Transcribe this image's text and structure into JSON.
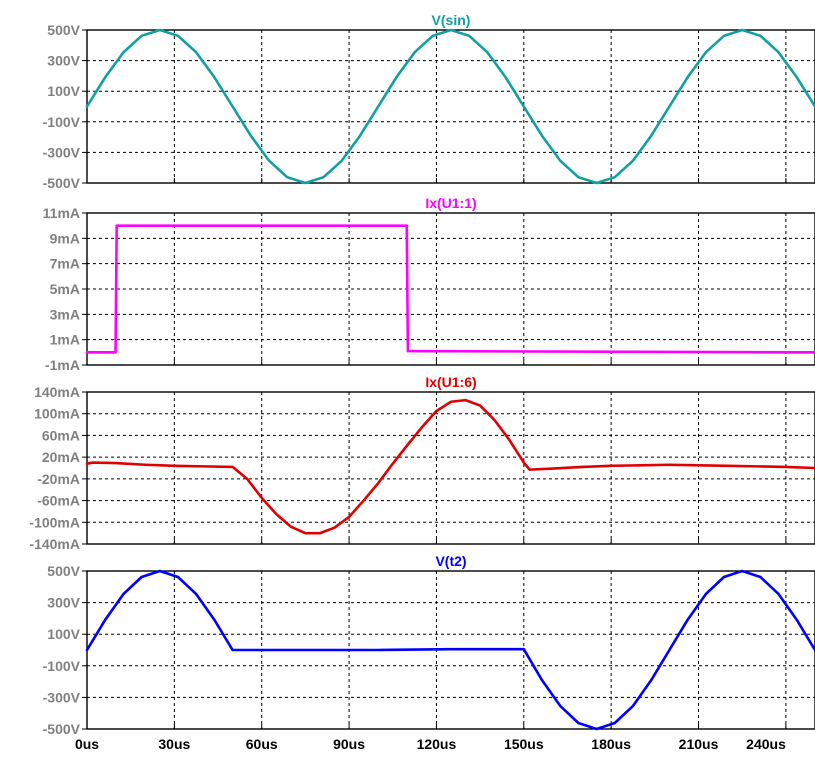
{
  "chart_data": [
    {
      "type": "line",
      "title": "V(sin)",
      "color": "#11a0a0",
      "yticks": [
        "500V",
        "300V",
        "100V",
        "-100V",
        "-300V",
        "-500V"
      ],
      "ylim": [
        -500,
        500
      ],
      "x_us": [
        0,
        6.25,
        12.5,
        18.75,
        25,
        31.25,
        37.5,
        43.75,
        50,
        56.25,
        62.5,
        68.75,
        75,
        81.25,
        87.5,
        93.75,
        100,
        106.25,
        112.5,
        118.75,
        125,
        131.25,
        137.5,
        143.75,
        150,
        156.25,
        162.5,
        168.75,
        175,
        181.25,
        187.5,
        193.75,
        200,
        206.25,
        212.5,
        218.75,
        225,
        231.25,
        237.5,
        243.75,
        250
      ],
      "y": [
        0,
        191,
        354,
        462,
        500,
        462,
        354,
        191,
        0,
        -191,
        -354,
        -462,
        -500,
        -462,
        -354,
        -191,
        0,
        191,
        354,
        462,
        500,
        462,
        354,
        191,
        0,
        -191,
        -354,
        -462,
        -500,
        -462,
        -354,
        -191,
        0,
        191,
        354,
        462,
        500,
        462,
        354,
        191,
        0
      ]
    },
    {
      "type": "line",
      "title": "Ix(U1:1)",
      "color": "#ff00ff",
      "yticks": [
        "11mA",
        "9mA",
        "7mA",
        "5mA",
        "3mA",
        "1mA",
        "-1mA"
      ],
      "ylim": [
        -1,
        11
      ],
      "x_us": [
        0,
        9.8,
        10.2,
        109.8,
        110.2,
        250
      ],
      "y": [
        0,
        0,
        10,
        10,
        0.1,
        0
      ]
    },
    {
      "type": "line",
      "title": "Ix(U1:6)",
      "color": "#e00000",
      "yticks": [
        "140mA",
        "100mA",
        "60mA",
        "20mA",
        "-20mA",
        "-60mA",
        "-100mA",
        "-140mA"
      ],
      "ylim": [
        -140,
        140
      ],
      "x_us": [
        0,
        2,
        10,
        20,
        30,
        40,
        50,
        55,
        60,
        65,
        70,
        75,
        80,
        85,
        90,
        95,
        100,
        105,
        110,
        115,
        120,
        125,
        130,
        135,
        140,
        145,
        150,
        152,
        160,
        170,
        180,
        190,
        200,
        210,
        220,
        230,
        240,
        250
      ],
      "y": [
        8,
        10,
        9,
        6,
        4,
        3,
        2,
        -20,
        -55,
        -85,
        -108,
        -120,
        -120,
        -110,
        -90,
        -60,
        -28,
        8,
        42,
        75,
        105,
        122,
        125,
        115,
        88,
        52,
        10,
        -3,
        -1,
        2,
        4,
        5,
        6,
        5,
        4,
        3,
        2,
        0
      ]
    },
    {
      "type": "line",
      "title": "V(t2)",
      "color": "#0000ff",
      "yticks": [
        "500V",
        "300V",
        "100V",
        "-100V",
        "-300V",
        "-500V"
      ],
      "ylim": [
        -500,
        500
      ],
      "x_us": [
        0,
        6.25,
        12.5,
        18.75,
        25,
        31.25,
        37.5,
        43.75,
        50,
        75,
        100,
        125,
        150,
        156.25,
        162.5,
        168.75,
        175,
        181.25,
        187.5,
        193.75,
        200,
        206.25,
        212.5,
        218.75,
        225,
        231.25,
        237.5,
        243.75,
        250
      ],
      "y": [
        0,
        191,
        354,
        462,
        500,
        462,
        354,
        191,
        0,
        0,
        0,
        5,
        5,
        -191,
        -354,
        -462,
        -500,
        -462,
        -354,
        -191,
        0,
        191,
        354,
        462,
        500,
        462,
        354,
        191,
        0
      ]
    }
  ],
  "x_axis": {
    "ticks": [
      "0us",
      "30us",
      "60us",
      "90us",
      "120us",
      "150us",
      "180us",
      "210us",
      "240us"
    ],
    "xlim_us": [
      0,
      250
    ]
  }
}
